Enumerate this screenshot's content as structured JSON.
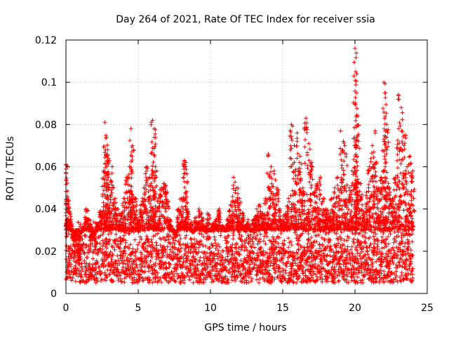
{
  "chart_data": {
    "type": "scatter",
    "title": "Day 264 of 2021, Rate Of TEC Index for receiver ssia",
    "xlabel": "GPS time / hours",
    "ylabel": "ROTI / TECUs",
    "xlim": [
      0,
      25
    ],
    "ylim": [
      0,
      0.12
    ],
    "xticks": [
      0,
      5,
      10,
      15,
      20,
      25
    ],
    "xtick_labels": [
      "0",
      "5",
      "10",
      "15",
      "20",
      "25"
    ],
    "yticks": [
      0,
      0.02,
      0.04,
      0.06,
      0.08,
      0.1,
      0.12
    ],
    "ytick_labels": [
      "0",
      "0.02",
      "0.04",
      "0.06",
      "0.08",
      "0.1",
      "0.12"
    ],
    "grid": true,
    "marker": "+",
    "marker_color": "#ff0000",
    "series": [
      {
        "name": "ROTI",
        "x": [
          0.0,
          0.1,
          0.2,
          0.3,
          0.4,
          0.5,
          0.6,
          0.7,
          0.8,
          0.9,
          1.0,
          1.2,
          1.4,
          1.6,
          1.8,
          2.0,
          2.2,
          2.4,
          2.6,
          2.7,
          2.8,
          2.9,
          3.0,
          3.2,
          3.4,
          3.6,
          3.8,
          4.0,
          4.2,
          4.4,
          4.5,
          4.6,
          4.8,
          5.0,
          5.2,
          5.4,
          5.6,
          5.8,
          6.0,
          6.1,
          6.2,
          6.4,
          6.6,
          6.8,
          7.0,
          7.2,
          7.4,
          7.6,
          7.8,
          8.0,
          8.2,
          8.3,
          8.4,
          8.6,
          8.8,
          9.0,
          9.2,
          9.4,
          9.6,
          9.8,
          10.0,
          10.2,
          10.4,
          10.6,
          10.8,
          11.0,
          11.2,
          11.4,
          11.6,
          11.8,
          12.0,
          12.2,
          12.4,
          12.6,
          12.8,
          13.0,
          13.2,
          13.4,
          13.6,
          13.8,
          14.0,
          14.2,
          14.4,
          14.6,
          14.8,
          15.0,
          15.2,
          15.4,
          15.6,
          15.8,
          16.0,
          16.2,
          16.4,
          16.6,
          16.8,
          17.0,
          17.2,
          17.4,
          17.6,
          17.8,
          18.0,
          18.2,
          18.4,
          18.6,
          18.8,
          19.0,
          19.2,
          19.4,
          19.6,
          19.8,
          20.0,
          20.05,
          20.1,
          20.2,
          20.4,
          20.6,
          20.8,
          21.0,
          21.2,
          21.4,
          21.6,
          21.8,
          22.0,
          22.1,
          22.2,
          22.4,
          22.6,
          22.8,
          23.0,
          23.2,
          23.4,
          23.6,
          23.8,
          24.0
        ],
        "y": [
          0.061,
          0.046,
          0.041,
          0.038,
          0.03,
          0.025,
          0.022,
          0.02,
          0.018,
          0.017,
          0.02,
          0.031,
          0.04,
          0.035,
          0.025,
          0.022,
          0.033,
          0.039,
          0.058,
          0.081,
          0.074,
          0.068,
          0.05,
          0.06,
          0.045,
          0.04,
          0.038,
          0.045,
          0.055,
          0.06,
          0.078,
          0.07,
          0.045,
          0.035,
          0.042,
          0.05,
          0.06,
          0.055,
          0.082,
          0.078,
          0.06,
          0.045,
          0.05,
          0.052,
          0.048,
          0.035,
          0.03,
          0.027,
          0.04,
          0.045,
          0.063,
          0.062,
          0.04,
          0.033,
          0.029,
          0.036,
          0.04,
          0.038,
          0.032,
          0.038,
          0.03,
          0.033,
          0.035,
          0.04,
          0.032,
          0.03,
          0.035,
          0.042,
          0.055,
          0.05,
          0.045,
          0.038,
          0.032,
          0.035,
          0.03,
          0.035,
          0.04,
          0.042,
          0.038,
          0.045,
          0.066,
          0.06,
          0.058,
          0.05,
          0.04,
          0.035,
          0.038,
          0.045,
          0.08,
          0.07,
          0.076,
          0.065,
          0.05,
          0.083,
          0.071,
          0.062,
          0.048,
          0.052,
          0.055,
          0.045,
          0.04,
          0.038,
          0.045,
          0.05,
          0.055,
          0.077,
          0.072,
          0.066,
          0.05,
          0.058,
          0.116,
          0.105,
          0.095,
          0.084,
          0.052,
          0.038,
          0.048,
          0.06,
          0.07,
          0.077,
          0.05,
          0.055,
          0.1,
          0.095,
          0.08,
          0.05,
          0.045,
          0.055,
          0.094,
          0.088,
          0.075,
          0.06,
          0.065,
          0.058
        ],
        "baseline_band": [
          0.005,
          0.03
        ]
      }
    ]
  }
}
